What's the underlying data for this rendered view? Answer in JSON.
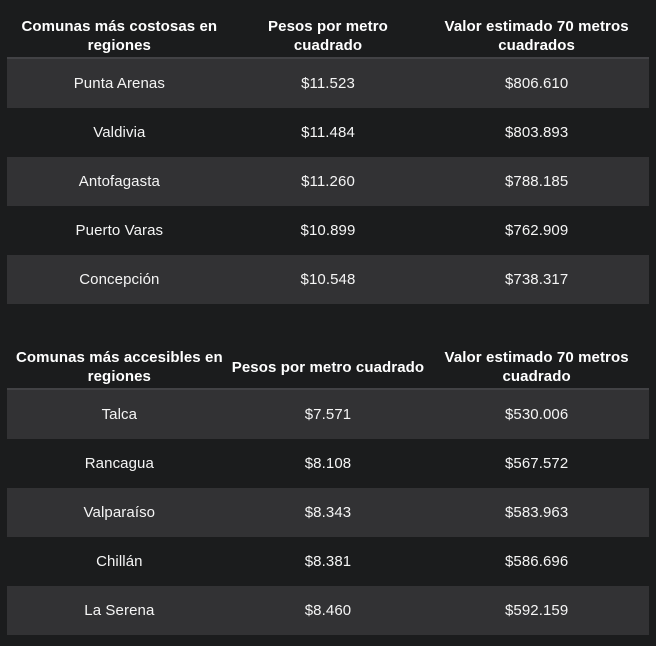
{
  "page": {
    "background_color": "#1b1c1d",
    "stripe_color": "#323234",
    "divider_color": "#424245",
    "header_text_color": "#ffffff",
    "cell_text_color": "#f5f5f5"
  },
  "chart_data": [
    {
      "type": "table",
      "title": "Comunas más costosas en regiones",
      "columns": [
        "Comunas más costosas en regiones",
        "Pesos por metro cuadrado",
        "Valor estimado 70 metros cuadrados"
      ],
      "rows": [
        [
          "Punta Arenas",
          "$11.523",
          "$806.610"
        ],
        [
          "Valdivia",
          "$11.484",
          "$803.893"
        ],
        [
          "Antofagasta",
          "$11.260",
          "$788.185"
        ],
        [
          "Puerto Varas",
          "$10.899",
          "$762.909"
        ],
        [
          "Concepción",
          "$10.548",
          "$738.317"
        ]
      ]
    },
    {
      "type": "table",
      "title": "Comunas más accesibles en regiones",
      "columns": [
        "Comunas más accesibles en regiones",
        "Pesos por metro cuadrado",
        "Valor estimado 70 metros cuadrado"
      ],
      "rows": [
        [
          "Talca",
          "$7.571",
          "$530.006"
        ],
        [
          "Rancagua",
          "$8.108",
          "$567.572"
        ],
        [
          "Valparaíso",
          "$8.343",
          "$583.963"
        ],
        [
          "Chillán",
          "$8.381",
          "$586.696"
        ],
        [
          "La Serena",
          "$8.460",
          "$592.159"
        ]
      ]
    }
  ]
}
